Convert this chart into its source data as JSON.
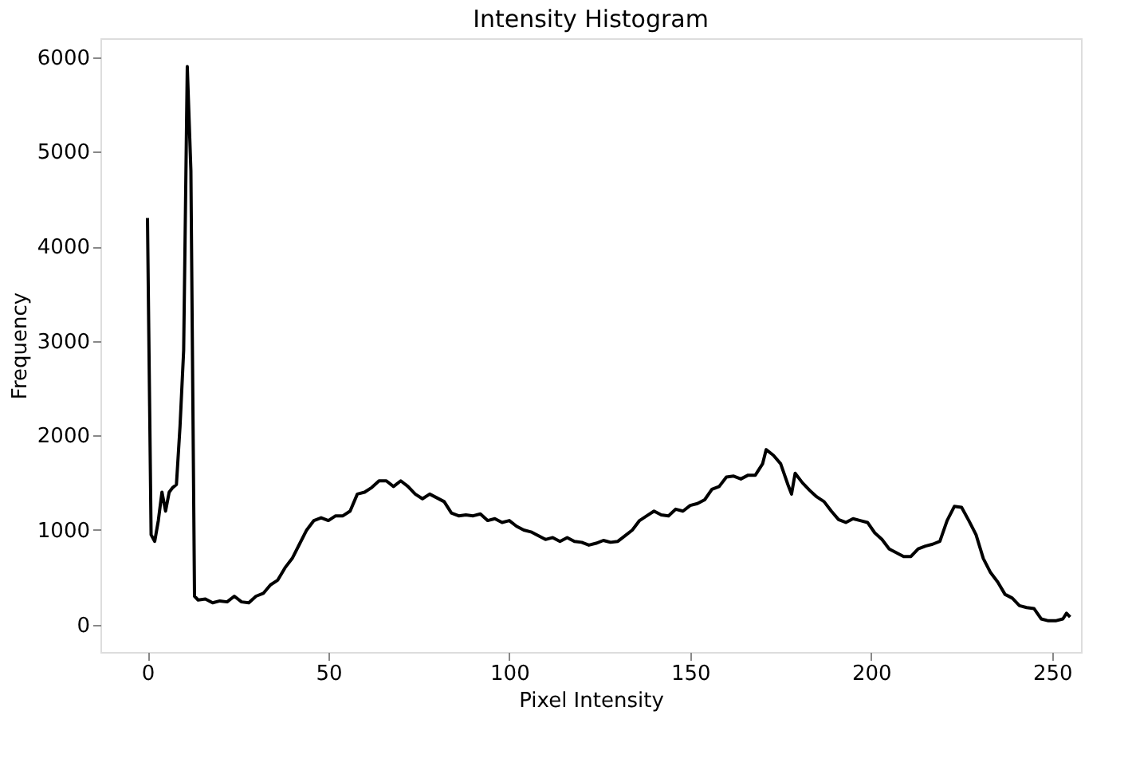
{
  "chart_data": {
    "type": "line",
    "title": "Intensity Histogram",
    "xlabel": "Pixel Intensity",
    "ylabel": "Frequency",
    "x": [
      0,
      1,
      2,
      3,
      4,
      5,
      6,
      7,
      8,
      9,
      10,
      11,
      12,
      13,
      14,
      16,
      18,
      20,
      22,
      24,
      26,
      28,
      30,
      32,
      34,
      36,
      38,
      40,
      42,
      44,
      46,
      48,
      50,
      52,
      54,
      56,
      58,
      60,
      62,
      64,
      66,
      68,
      70,
      72,
      74,
      76,
      78,
      80,
      82,
      84,
      86,
      88,
      90,
      92,
      94,
      96,
      98,
      100,
      102,
      104,
      106,
      108,
      110,
      112,
      114,
      116,
      118,
      120,
      122,
      124,
      126,
      128,
      130,
      132,
      134,
      136,
      138,
      140,
      142,
      144,
      146,
      148,
      150,
      152,
      154,
      156,
      158,
      160,
      162,
      164,
      166,
      168,
      170,
      171,
      173,
      175,
      177,
      178,
      179,
      181,
      183,
      185,
      187,
      189,
      191,
      193,
      195,
      197,
      199,
      201,
      203,
      205,
      207,
      209,
      211,
      213,
      215,
      217,
      219,
      221,
      223,
      225,
      227,
      229,
      231,
      233,
      235,
      237,
      239,
      241,
      243,
      245,
      247,
      249,
      251,
      253,
      254,
      255
    ],
    "series": [
      {
        "color": "#000000",
        "values": [
          4300,
          950,
          880,
          1100,
          1400,
          1200,
          1400,
          1450,
          1480,
          2100,
          2900,
          5900,
          4800,
          300,
          260,
          270,
          230,
          250,
          240,
          300,
          240,
          230,
          300,
          330,
          420,
          470,
          600,
          700,
          850,
          1000,
          1100,
          1130,
          1100,
          1150,
          1150,
          1200,
          1380,
          1400,
          1450,
          1520,
          1520,
          1460,
          1520,
          1460,
          1380,
          1330,
          1380,
          1340,
          1300,
          1180,
          1150,
          1160,
          1150,
          1170,
          1100,
          1120,
          1080,
          1100,
          1040,
          1000,
          980,
          940,
          900,
          920,
          880,
          920,
          880,
          870,
          840,
          860,
          890,
          870,
          880,
          940,
          1000,
          1100,
          1150,
          1200,
          1160,
          1150,
          1220,
          1200,
          1260,
          1280,
          1320,
          1430,
          1460,
          1560,
          1570,
          1540,
          1580,
          1580,
          1700,
          1850,
          1790,
          1700,
          1480,
          1380,
          1600,
          1500,
          1420,
          1350,
          1300,
          1200,
          1110,
          1080,
          1120,
          1100,
          1080,
          970,
          900,
          800,
          760,
          720,
          720,
          800,
          830,
          850,
          880,
          1100,
          1250,
          1240,
          1100,
          950,
          700,
          550,
          450,
          320,
          280,
          200,
          180,
          170,
          60,
          40,
          40,
          60,
          120,
          80
        ]
      }
    ],
    "xlim": [
      -13,
      258
    ],
    "ylim": [
      -290,
      6200
    ],
    "xticks": [
      0,
      50,
      100,
      150,
      200,
      250
    ],
    "yticks": [
      0,
      1000,
      2000,
      3000,
      4000,
      5000,
      6000
    ],
    "grid": false
  }
}
